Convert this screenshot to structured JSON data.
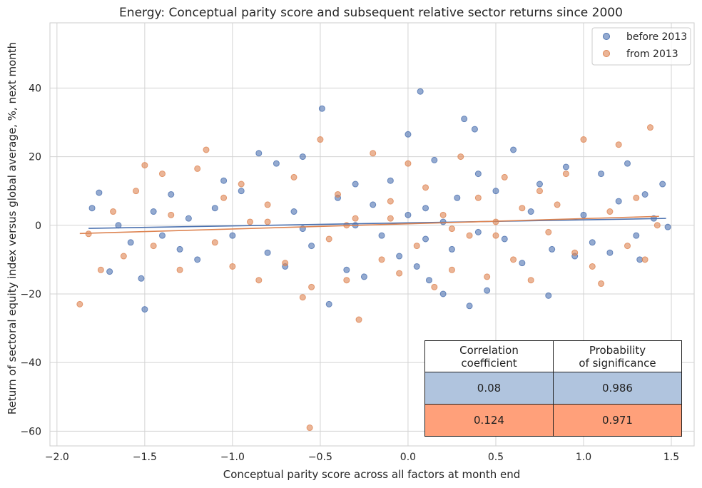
{
  "chart_data": {
    "type": "scatter",
    "title": "Energy: Conceptual parity score and subsequent relative sector returns since 2000",
    "x_label": "Conceptual parity score across all factors at month end",
    "y_label": "Return of sectoral equity index versus global average, %, next month",
    "xlim": [
      -2.04,
      1.63
    ],
    "ylim": [
      -64.3,
      59
    ],
    "xticks": [
      {
        "value": -2,
        "label": "−2.0"
      },
      {
        "value": -1.5,
        "label": "−1.5"
      },
      {
        "value": -1,
        "label": "−1.0"
      },
      {
        "value": -0.5,
        "label": "−0.5"
      },
      {
        "value": 0,
        "label": "0.0"
      },
      {
        "value": 0.5,
        "label": "0.5"
      },
      {
        "value": 1,
        "label": "1.0"
      },
      {
        "value": 1.5,
        "label": "1.5"
      }
    ],
    "yticks": [
      {
        "value": -60,
        "label": "−60"
      },
      {
        "value": -40,
        "label": "−40"
      },
      {
        "value": -20,
        "label": "−20"
      },
      0,
      20,
      40
    ],
    "grid": true,
    "legend": "upper right",
    "series": [
      {
        "name": "before 2013",
        "color": "#4c72b0",
        "x": [
          -1.8,
          -1.76,
          -1.7,
          -1.65,
          -1.58,
          -1.52,
          -1.5,
          -1.45,
          -1.4,
          -1.35,
          -1.3,
          -1.25,
          -1.2,
          -1.1,
          -1.05,
          -1.0,
          -0.95,
          -0.85,
          -0.8,
          -0.75,
          -0.7,
          -0.65,
          -0.6,
          -0.55,
          -0.49,
          -0.45,
          -0.4,
          -0.35,
          -0.3,
          -0.25,
          -0.2,
          -0.15,
          -0.1,
          -0.05,
          0.0,
          0.0,
          0.05,
          0.07,
          0.1,
          0.12,
          0.15,
          0.2,
          0.25,
          0.28,
          0.32,
          0.35,
          0.38,
          0.4,
          0.45,
          0.5,
          0.55,
          0.6,
          0.65,
          0.7,
          0.75,
          0.8,
          0.82,
          0.9,
          0.95,
          1.0,
          1.05,
          1.1,
          1.15,
          1.2,
          1.25,
          1.3,
          1.32,
          1.35,
          1.4,
          1.45,
          1.48,
          -0.3,
          0.2,
          -0.6,
          0.4,
          0.1
        ],
        "y": [
          5,
          9.5,
          -13.5,
          0,
          -5,
          -15.5,
          -24.5,
          4,
          -3,
          9,
          -7,
          2,
          -10,
          5,
          13,
          -3,
          10,
          21,
          -8,
          18,
          -12,
          4,
          20,
          -6,
          34,
          -23,
          8,
          -13,
          12,
          -15,
          6,
          -3,
          13,
          -9,
          3,
          26.5,
          -12,
          39,
          5,
          -16,
          19,
          -20,
          -7,
          8,
          31,
          -23.5,
          28,
          15,
          -19,
          10,
          -4,
          22,
          -11,
          4,
          12,
          -20.5,
          -7,
          17,
          -9,
          3,
          -5,
          15,
          -8,
          7,
          18,
          -3,
          -10,
          9,
          2,
          12,
          -0.5,
          0,
          1,
          -1,
          -2,
          -4
        ],
        "fit_x": [
          -1.82,
          1.47
        ],
        "fit_y": [
          -0.9,
          2.0
        ]
      },
      {
        "name": "from 2013",
        "color": "#dd8452",
        "x": [
          -1.87,
          -1.82,
          -1.75,
          -1.68,
          -1.62,
          -1.55,
          -1.5,
          -1.45,
          -1.4,
          -1.35,
          -1.3,
          -1.2,
          -1.15,
          -1.1,
          -1.05,
          -1.0,
          -0.95,
          -0.9,
          -0.85,
          -0.8,
          -0.7,
          -0.65,
          -0.6,
          -0.56,
          -0.55,
          -0.5,
          -0.45,
          -0.4,
          -0.35,
          -0.3,
          -0.28,
          -0.2,
          -0.15,
          -0.1,
          -0.05,
          0.0,
          0.05,
          0.1,
          0.15,
          0.2,
          0.25,
          0.3,
          0.35,
          0.4,
          0.45,
          0.5,
          0.55,
          0.6,
          0.65,
          0.7,
          0.75,
          0.8,
          0.85,
          0.9,
          0.95,
          1.0,
          1.05,
          1.1,
          1.15,
          1.2,
          1.25,
          1.3,
          1.35,
          1.38,
          1.42,
          -0.35,
          0.25,
          -0.8,
          0.5,
          -0.1
        ],
        "y": [
          -23,
          -2.5,
          -13,
          4,
          -9,
          10,
          17.5,
          -6,
          15,
          3,
          -13,
          16.5,
          22,
          -5,
          8,
          -12,
          12,
          1,
          -16,
          6,
          -11,
          14,
          -21,
          -59,
          -18,
          25,
          -4,
          9,
          -16,
          2,
          -27.5,
          21,
          -10,
          7,
          -14,
          18,
          -6,
          11,
          -18,
          3,
          -13,
          20,
          -3,
          8,
          -15,
          1,
          14,
          -10,
          5,
          -16,
          10,
          -2,
          6,
          15,
          -8,
          25,
          -12,
          -17,
          4,
          23.5,
          -6,
          8,
          -10,
          28.5,
          0,
          0,
          -1,
          1,
          -3,
          2
        ],
        "fit_x": [
          -1.87,
          1.43
        ],
        "fit_y": [
          -2.4,
          2.6
        ]
      }
    ],
    "table": {
      "columns": [
        "Correlation\ncoefficient",
        "Probability\nof significance"
      ],
      "rows": [
        [
          0.08,
          0.986
        ],
        [
          0.124,
          0.971
        ]
      ],
      "row_colors": [
        "#b0c4de",
        "#ffa07a"
      ]
    }
  }
}
